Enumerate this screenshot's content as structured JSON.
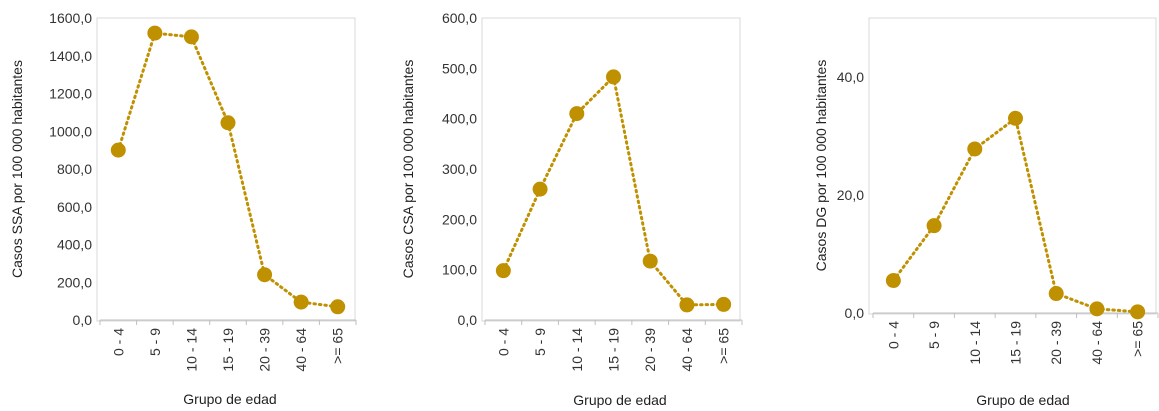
{
  "colors": {
    "series": "#BF9000",
    "plot_border": "#D9D9D9",
    "tick_mark": "#BFBFBF"
  },
  "chart_data": [
    {
      "type": "line",
      "categories": [
        "0 - 4",
        "5 - 9",
        "10 - 14",
        "15 - 19",
        "20 - 39",
        "40 - 64",
        ">= 65"
      ],
      "values": [
        900,
        1520,
        1500,
        1045,
        240,
        95,
        70
      ],
      "xlabel": "Grupo de edad",
      "ylabel": "Casos SSA por 100 000 habitantes",
      "ylim": [
        0,
        1600
      ],
      "yticks": [
        "0,0",
        "200,0",
        "400,0",
        "600,0",
        "800,0",
        "1000,0",
        "1200,0",
        "1400,0",
        "1600,0"
      ],
      "yticks_values": [
        0,
        200,
        400,
        600,
        800,
        1000,
        1200,
        1400,
        1600
      ],
      "grid": false,
      "line_style": "dotted",
      "marker": "circle"
    },
    {
      "type": "line",
      "categories": [
        "0 - 4",
        "5 - 9",
        "10 - 14",
        "15 - 19",
        "20 - 39",
        "40 - 64",
        ">= 65"
      ],
      "values": [
        98,
        260,
        410,
        483,
        117,
        30,
        31
      ],
      "xlabel": "Grupo de edad",
      "ylabel": "Casos CSA por 100 000 habitantes",
      "ylim": [
        0,
        600
      ],
      "yticks": [
        "0,0",
        "100,0",
        "200,0",
        "300,0",
        "400,0",
        "500,0",
        "600,0"
      ],
      "yticks_values": [
        0,
        100,
        200,
        300,
        400,
        500,
        600
      ],
      "grid": false,
      "line_style": "dotted",
      "marker": "circle"
    },
    {
      "type": "line",
      "categories": [
        "0 - 4",
        "5 - 9",
        "10 - 14",
        "15 - 19",
        "20 - 39",
        "40 - 64",
        ">= 65"
      ],
      "values": [
        5.5,
        14.8,
        27.8,
        33.0,
        3.3,
        0.7,
        0.2
      ],
      "xlabel": "Grupo de edad",
      "ylabel": "Casos DG por 100 000 habitantes",
      "ylim": [
        0,
        50
      ],
      "yticks": [
        "0,0",
        "20,0",
        "40,0"
      ],
      "yticks_values": [
        0,
        20,
        40
      ],
      "grid": false,
      "line_style": "dotted",
      "marker": "circle"
    }
  ]
}
